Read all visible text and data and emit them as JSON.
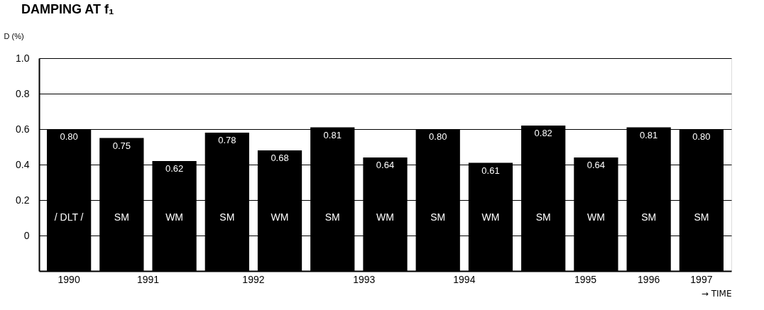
{
  "chart_data": {
    "type": "bar",
    "title": "DAMPING AT f₁",
    "ylabel": "D (%)",
    "xlabel": "→ TIME",
    "categories": [
      "/ DLT /",
      "SM",
      "WM",
      "SM",
      "WM",
      "SM",
      "WM",
      "SM",
      "WM",
      "SM",
      "WM",
      "SM",
      "SM"
    ],
    "values": [
      0.8,
      0.75,
      0.62,
      0.78,
      0.68,
      0.81,
      0.64,
      0.8,
      0.61,
      0.82,
      0.64,
      0.81,
      0.8
    ],
    "base": [
      -0.2,
      -0.2,
      -0.2,
      -0.2,
      -0.2,
      -0.2,
      -0.2,
      -0.2,
      -0.2,
      -0.2,
      -0.2,
      -0.2,
      -0.2
    ],
    "color": "#000000",
    "value_labels": [
      "0.80",
      "0.75",
      "0.62",
      "0.78",
      "0.68",
      "0.81",
      "0.64",
      "0.80",
      "0.61",
      "0.82",
      "0.64",
      "0.81",
      "0.80"
    ],
    "ylim": [
      -0.2,
      1.0
    ],
    "yticks": [
      0,
      0.2,
      0.4,
      0.6,
      0.8,
      {
        "value": 1.0,
        "label": "1.0"
      }
    ],
    "annotations": [
      "1990",
      "1991",
      "1992",
      "1993",
      "1994",
      "1995",
      "1996",
      "1997"
    ],
    "grid": "y"
  }
}
